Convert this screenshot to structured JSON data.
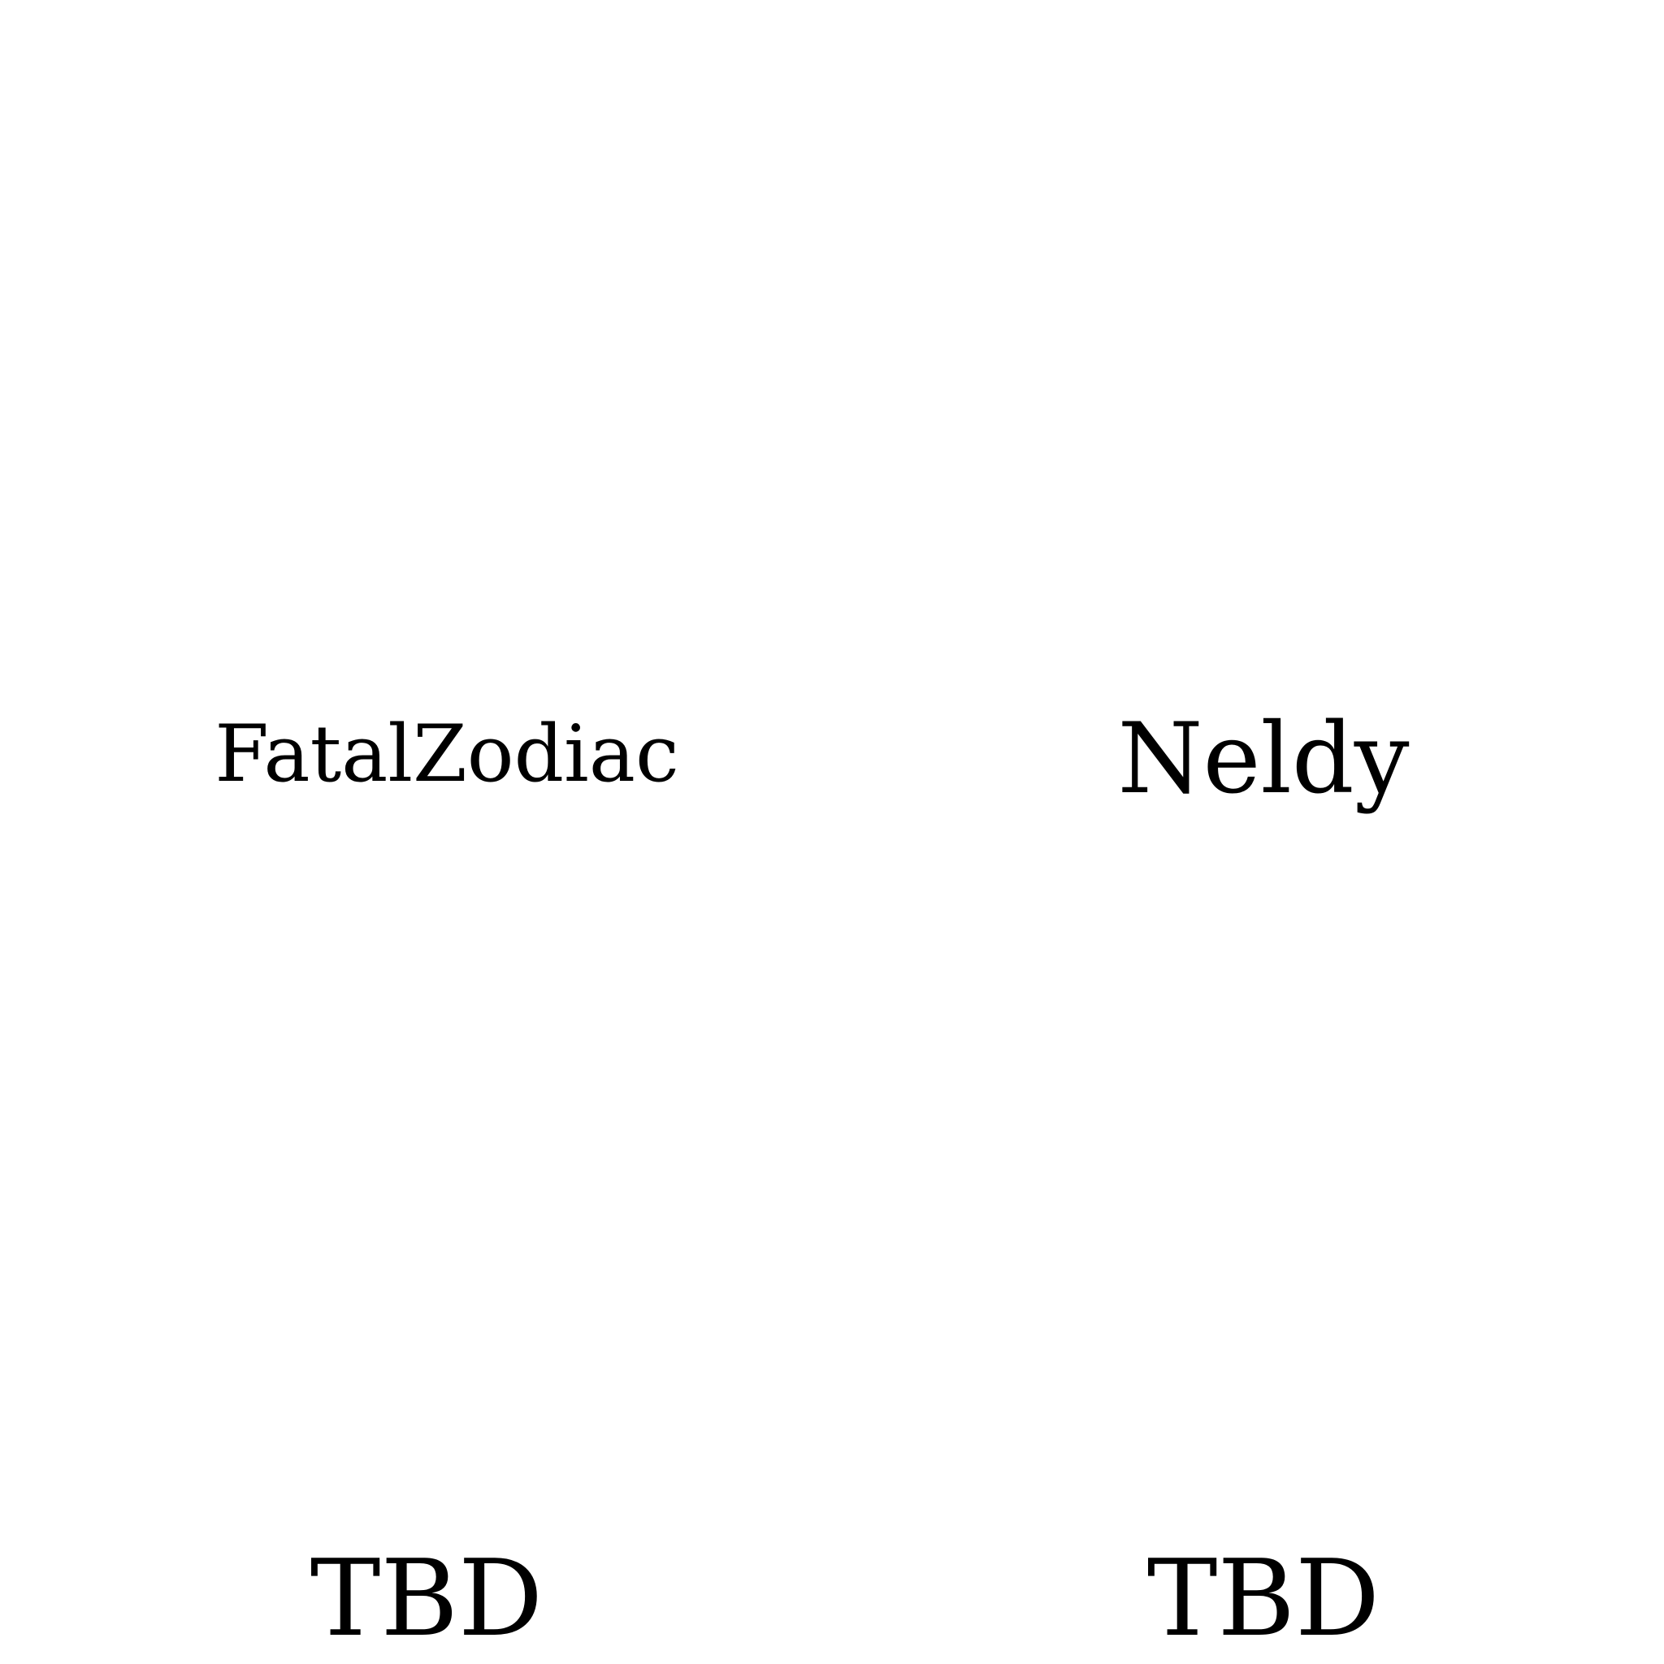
{
  "bracket": {
    "players": [
      {
        "name": "FatalZodiac"
      },
      {
        "name": "Neldy"
      }
    ],
    "next_round": [
      {
        "name": "TBD"
      },
      {
        "name": "TBD"
      }
    ]
  }
}
